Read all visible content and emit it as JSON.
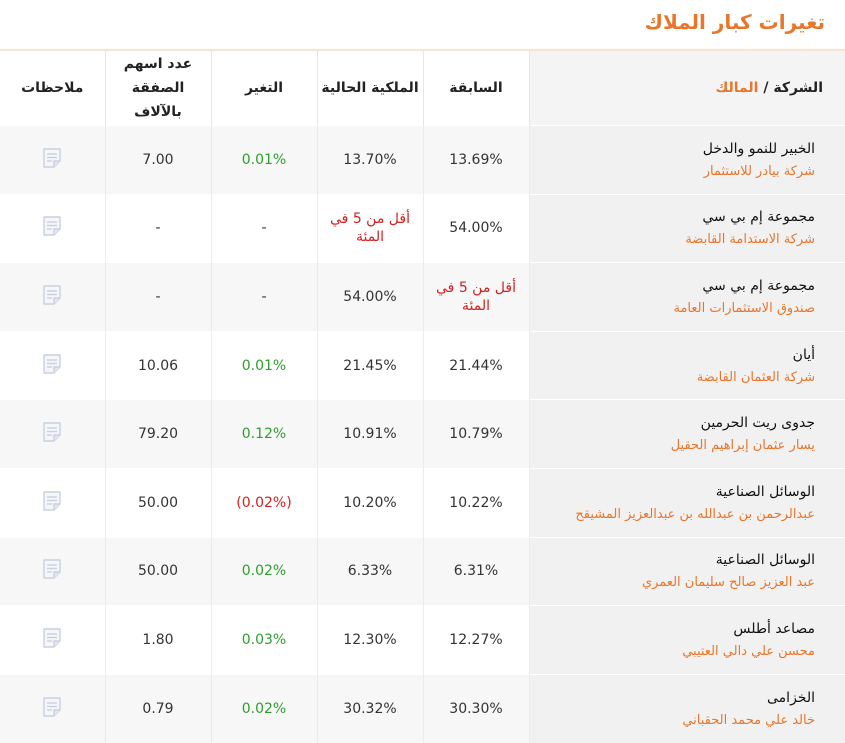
{
  "page": {
    "title": "تغيرات كبار الملاك"
  },
  "table": {
    "headers": {
      "company": "الشركة",
      "separator": " / ",
      "owner": "المالك",
      "previous": "السابقة",
      "current": "الملكية الحالية",
      "change": "التغير",
      "deal_shares_line1": "عدد اسهم",
      "deal_shares_line2": "الصفقة بالآلاف",
      "notes": "ملاحظات"
    },
    "rows": [
      {
        "company": "الخبير للنمو والدخل",
        "owner": "شركة بيادر للاستثمار",
        "previous": "13.69%",
        "current": "13.70%",
        "change": "0.01%",
        "change_type": "pos",
        "shares": "7.00"
      },
      {
        "company": "مجموعة إم بي سي",
        "owner": "شركة الاستدامة القابضة",
        "previous": "54.00%",
        "current": "أقل من 5 في المئة",
        "change": "-",
        "change_type": "none",
        "shares": "-"
      },
      {
        "company": "مجموعة إم بي سي",
        "owner": "صندوق الاستثمارات العامة",
        "previous": "أقل من 5 في المئة",
        "current": "54.00%",
        "change": "-",
        "change_type": "none",
        "shares": "-"
      },
      {
        "company": "أيان",
        "owner": "شركة العثمان القابضة",
        "previous": "21.44%",
        "current": "21.45%",
        "change": "0.01%",
        "change_type": "pos",
        "shares": "10.06"
      },
      {
        "company": "جدوى ريت الحرمين",
        "owner": "يسار عثمان إبراهيم الحقيل",
        "previous": "10.79%",
        "current": "10.91%",
        "change": "0.12%",
        "change_type": "pos",
        "shares": "79.20"
      },
      {
        "company": "الوسائل الصناعية",
        "owner": "عبدالرحمن بن عبدالله بن عبدالعزيز المشيقح",
        "previous": "10.22%",
        "current": "10.20%",
        "change": "(0.02%)",
        "change_type": "neg",
        "shares": "50.00"
      },
      {
        "company": "الوسائل الصناعية",
        "owner": "عبد العزيز صالح سليمان العمري",
        "previous": "6.31%",
        "current": "6.33%",
        "change": "0.02%",
        "change_type": "pos",
        "shares": "50.00"
      },
      {
        "company": "مصاعد أطلس",
        "owner": "محسن علي دالي العتيبي",
        "previous": "12.27%",
        "current": "12.30%",
        "change": "0.03%",
        "change_type": "pos",
        "shares": "1.80"
      },
      {
        "company": "الخزامى",
        "owner": "خالد علي محمد الحقباني",
        "previous": "30.30%",
        "current": "30.32%",
        "change": "0.02%",
        "change_type": "pos",
        "shares": "0.79"
      }
    ]
  },
  "icons": {
    "notes": "document-note-icon"
  },
  "colors": {
    "accent": "#e8762b",
    "positive": "#2e9e2e",
    "negative": "#d42020",
    "icon": "#c9d1de"
  }
}
